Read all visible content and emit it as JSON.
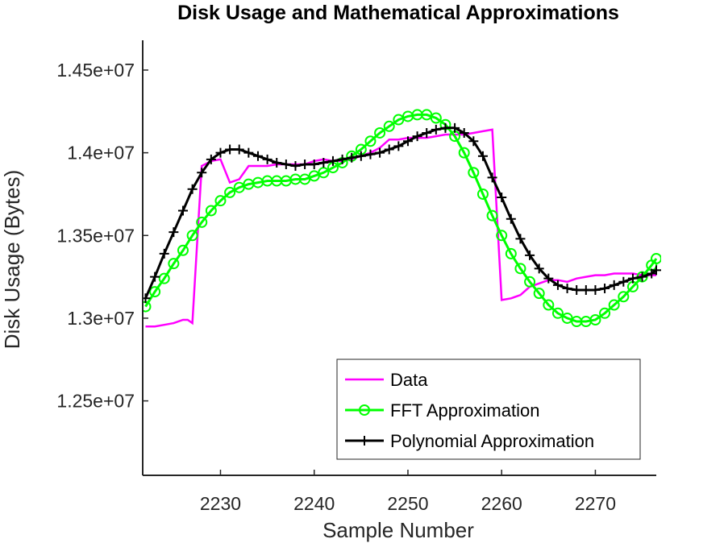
{
  "chart_data": {
    "type": "line",
    "title": "Disk Usage and Mathematical Approximations",
    "xlabel": "Sample Number",
    "ylabel": "Disk Usage (Bytes)",
    "xlim": [
      2221.7,
      2276.5
    ],
    "ylim": [
      12050000,
      14680000
    ],
    "xticks": [
      2230,
      2240,
      2250,
      2260,
      2270
    ],
    "xtick_labels": [
      "2230",
      "2240",
      "2250",
      "2260",
      "2270"
    ],
    "yticks": [
      12500000,
      13000000,
      13500000,
      14000000,
      14500000
    ],
    "ytick_labels": [
      "1.25e+07",
      "1.3e+07",
      "1.35e+07",
      "1.4e+07",
      "1.45e+07"
    ],
    "grid": false,
    "legend_position": "bottom-right",
    "series": [
      {
        "name": "Data",
        "color": "#ff00ff",
        "marker": "none",
        "x": [
          2222,
          2223,
          2224,
          2225,
          2226,
          2226.5,
          2227,
          2228,
          2229,
          2230,
          2231,
          2232,
          2233,
          2234,
          2235,
          2236,
          2237,
          2238,
          2239,
          2240,
          2241,
          2242,
          2243,
          2244,
          2245,
          2246,
          2247,
          2248,
          2249,
          2250,
          2251,
          2252,
          2253,
          2254,
          2255,
          2256,
          2257,
          2258,
          2259,
          2260,
          2261,
          2262,
          2263,
          2264,
          2265,
          2266,
          2267,
          2268,
          2269,
          2270,
          2271,
          2272,
          2273,
          2274,
          2275,
          2276,
          2276.5
        ],
        "y": [
          12950000,
          12950000,
          12960000,
          12970000,
          12990000,
          12990000,
          12970000,
          13920000,
          13950000,
          13960000,
          13820000,
          13840000,
          13920000,
          13920000,
          13920000,
          13930000,
          13930000,
          13930000,
          13930000,
          13950000,
          13960000,
          13950000,
          13950000,
          13960000,
          13980000,
          14000000,
          14030000,
          14080000,
          14080000,
          14090000,
          14090000,
          14090000,
          14100000,
          14110000,
          14110000,
          14110000,
          14120000,
          14130000,
          14140000,
          13110000,
          13120000,
          13140000,
          13190000,
          13210000,
          13230000,
          13230000,
          13220000,
          13240000,
          13250000,
          13260000,
          13260000,
          13270000,
          13270000,
          13270000,
          13260000,
          13260000,
          13260000
        ]
      },
      {
        "name": "FFT Approximation",
        "color": "#00ff00",
        "marker": "circle",
        "x": [
          2222,
          2223,
          2224,
          2225,
          2226,
          2227,
          2228,
          2229,
          2230,
          2231,
          2232,
          2233,
          2234,
          2235,
          2236,
          2237,
          2238,
          2239,
          2240,
          2241,
          2242,
          2243,
          2244,
          2245,
          2246,
          2247,
          2248,
          2249,
          2250,
          2251,
          2252,
          2253,
          2254,
          2255,
          2256,
          2257,
          2258,
          2259,
          2260,
          2261,
          2262,
          2263,
          2264,
          2265,
          2266,
          2267,
          2268,
          2269,
          2270,
          2271,
          2272,
          2273,
          2274,
          2275,
          2276,
          2276.5
        ],
        "y": [
          13070000,
          13160000,
          13240000,
          13330000,
          13410000,
          13500000,
          13580000,
          13650000,
          13710000,
          13760000,
          13790000,
          13810000,
          13820000,
          13830000,
          13830000,
          13830000,
          13840000,
          13840000,
          13860000,
          13880000,
          13910000,
          13940000,
          13980000,
          14020000,
          14070000,
          14120000,
          14160000,
          14200000,
          14220000,
          14230000,
          14230000,
          14210000,
          14170000,
          14100000,
          14000000,
          13880000,
          13750000,
          13620000,
          13500000,
          13390000,
          13300000,
          13220000,
          13150000,
          13080000,
          13030000,
          13000000,
          12980000,
          12980000,
          12990000,
          13030000,
          13080000,
          13130000,
          13190000,
          13250000,
          13320000,
          13360000
        ]
      },
      {
        "name": "Polynomial Approximation",
        "color": "#000000",
        "marker": "plus",
        "x": [
          2222,
          2223,
          2224,
          2225,
          2226,
          2227,
          2228,
          2229,
          2230,
          2231,
          2232,
          2233,
          2234,
          2235,
          2236,
          2237,
          2238,
          2239,
          2240,
          2241,
          2242,
          2243,
          2244,
          2245,
          2246,
          2247,
          2248,
          2249,
          2250,
          2251,
          2252,
          2253,
          2254,
          2255,
          2256,
          2257,
          2258,
          2259,
          2260,
          2261,
          2262,
          2263,
          2264,
          2265,
          2266,
          2267,
          2268,
          2269,
          2270,
          2271,
          2272,
          2273,
          2274,
          2275,
          2276,
          2276.5
        ],
        "y": [
          13120000,
          13250000,
          13390000,
          13520000,
          13650000,
          13780000,
          13880000,
          13960000,
          14000000,
          14020000,
          14020000,
          14000000,
          13980000,
          13960000,
          13940000,
          13930000,
          13920000,
          13930000,
          13930000,
          13940000,
          13950000,
          13960000,
          13970000,
          13980000,
          13990000,
          14000000,
          14020000,
          14040000,
          14070000,
          14100000,
          14120000,
          14140000,
          14150000,
          14150000,
          14120000,
          14070000,
          13980000,
          13850000,
          13730000,
          13600000,
          13480000,
          13380000,
          13300000,
          13240000,
          13200000,
          13180000,
          13170000,
          13170000,
          13170000,
          13180000,
          13200000,
          13220000,
          13240000,
          13250000,
          13270000,
          13290000
        ]
      }
    ]
  }
}
